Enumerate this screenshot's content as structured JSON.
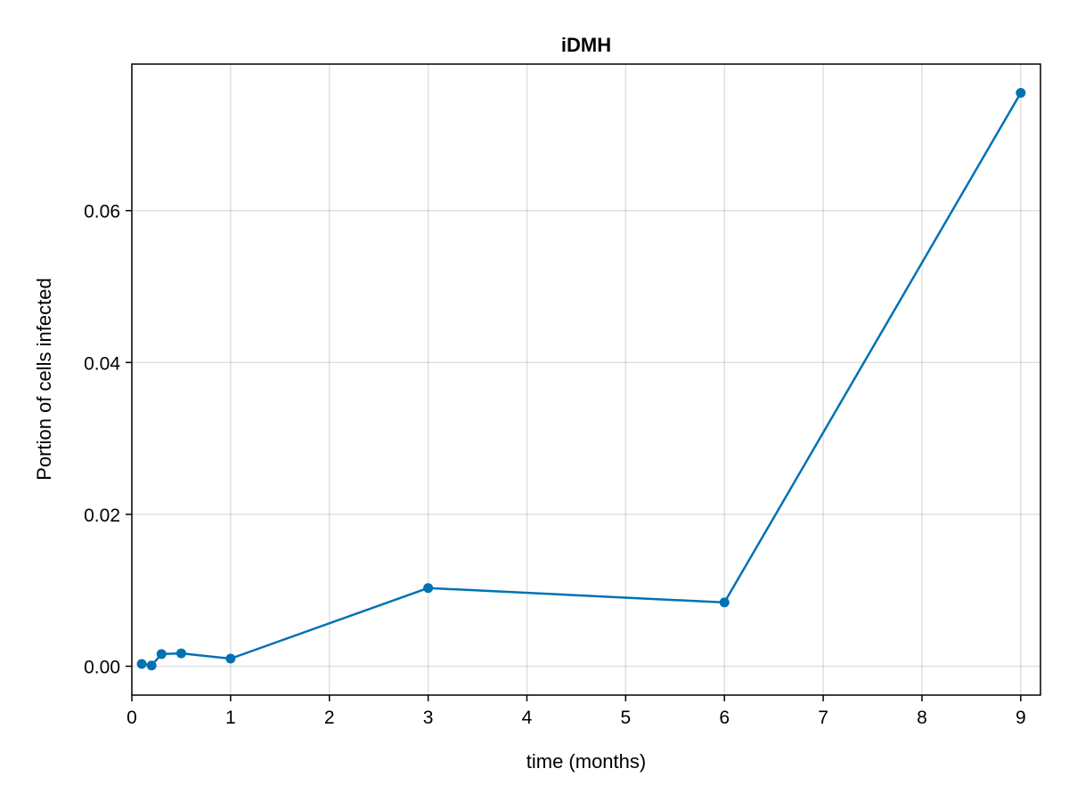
{
  "chart_data": {
    "type": "line",
    "title": "iDMH",
    "xlabel": "time (months)",
    "ylabel": "Portion of cells infected",
    "xlim": [
      0,
      9.2
    ],
    "ylim": [
      -0.0038,
      0.0793
    ],
    "x_ticks": [
      0,
      1,
      2,
      3,
      4,
      5,
      6,
      7,
      8,
      9
    ],
    "x_tick_labels": [
      "0",
      "1",
      "2",
      "3",
      "4",
      "5",
      "6",
      "7",
      "8",
      "9"
    ],
    "y_ticks": [
      0.0,
      0.02,
      0.04,
      0.06
    ],
    "y_tick_labels": [
      "0.00",
      "0.02",
      "0.04",
      "0.06"
    ],
    "grid": true,
    "color": "#0072b2",
    "series": [
      {
        "x": [
          0.1,
          0.2,
          0.3,
          0.5,
          1,
          3,
          6,
          9
        ],
        "y": [
          0.0003,
          0.0001,
          0.0016,
          0.0017,
          0.001,
          0.0103,
          0.0084,
          0.0755
        ]
      }
    ]
  }
}
